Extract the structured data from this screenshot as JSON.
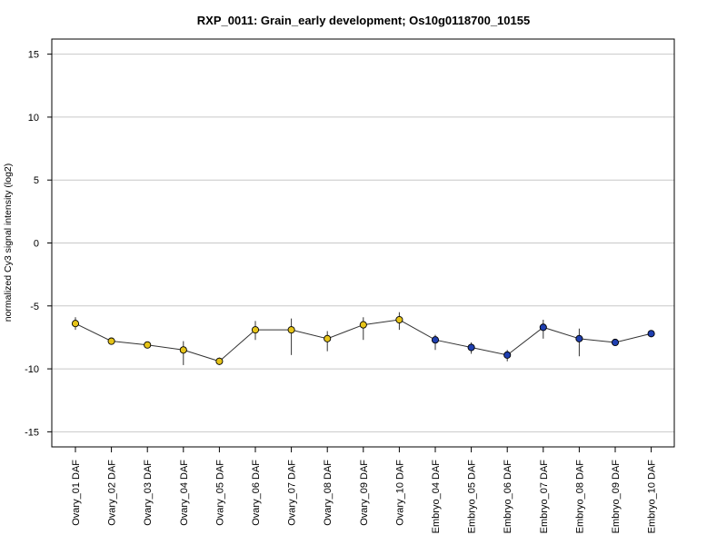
{
  "chart_data": {
    "type": "line",
    "title": "RXP_0011: Grain_early development; Os10g0118700_10155",
    "xlabel": "",
    "ylabel": "normalized Cy3 signal intensity (log2)",
    "ylim": [
      -16.2,
      16.2
    ],
    "yticks": [
      15,
      10,
      5,
      0,
      -5,
      -10,
      -15
    ],
    "grid": true,
    "categories": [
      "Ovary_01 DAF",
      "Ovary_02 DAF",
      "Ovary_03 DAF",
      "Ovary_04 DAF",
      "Ovary_05 DAF",
      "Ovary_06 DAF",
      "Ovary_07 DAF",
      "Ovary_08 DAF",
      "Ovary_09 DAF",
      "Ovary_10 DAF",
      "Embryo_04 DAF",
      "Embryo_05 DAF",
      "Embryo_06 DAF",
      "Embryo_07 DAF",
      "Embryo_08 DAF",
      "Embryo_09 DAF",
      "Embryo_10 DAF"
    ],
    "values": [
      -6.4,
      -7.8,
      -8.1,
      -8.5,
      -9.4,
      -6.9,
      -6.9,
      -7.6,
      -6.5,
      -6.1,
      -7.7,
      -8.3,
      -8.9,
      -6.7,
      -7.6,
      -7.9,
      -7.2
    ],
    "error_low": [
      -6.9,
      -7.9,
      -8.2,
      -9.7,
      -9.6,
      -7.7,
      -8.9,
      -8.6,
      -7.7,
      -6.9,
      -8.5,
      -8.8,
      -9.4,
      -7.6,
      -9.0,
      -8.1,
      -7.3
    ],
    "error_high": [
      -5.9,
      -7.6,
      -7.9,
      -7.8,
      -9.1,
      -6.2,
      -6.0,
      -7.0,
      -5.9,
      -5.5,
      -7.3,
      -7.9,
      -8.5,
      -6.1,
      -6.8,
      -7.7,
      -7.0
    ],
    "point_colors": [
      "#e6c419",
      "#e6c419",
      "#e6c419",
      "#e6c419",
      "#e6c419",
      "#e6c419",
      "#e6c419",
      "#e6c419",
      "#e6c419",
      "#e6c419",
      "#1f3fb0",
      "#1f3fb0",
      "#1f3fb0",
      "#1f3fb0",
      "#1f3fb0",
      "#1f3fb0",
      "#1f3fb0"
    ],
    "line_color": "#333333",
    "grid_color": "#c8c8c8"
  }
}
